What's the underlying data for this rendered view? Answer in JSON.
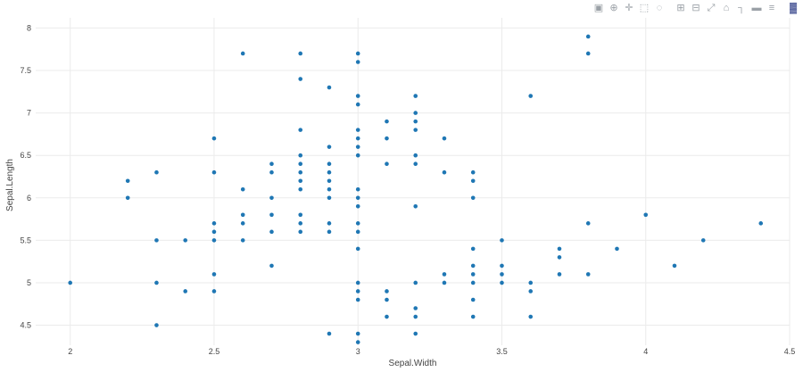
{
  "modebar": {
    "buttons": [
      {
        "icon": "camera-icon",
        "glyph": "▣"
      },
      {
        "icon": "zoom-icon",
        "glyph": "⊕"
      },
      {
        "icon": "pan-icon",
        "glyph": "✛"
      },
      {
        "icon": "box-select-icon",
        "glyph": "⬚"
      },
      {
        "icon": "lasso-select-icon",
        "glyph": "◌"
      },
      {
        "icon": "zoom-in-icon",
        "glyph": "⊞"
      },
      {
        "icon": "zoom-out-icon",
        "glyph": "⊟"
      },
      {
        "icon": "autoscale-icon",
        "glyph": "⤢"
      },
      {
        "icon": "reset-axes-icon",
        "glyph": "⌂"
      },
      {
        "icon": "spike-lines-icon",
        "glyph": "┐"
      },
      {
        "icon": "hover-closest-icon",
        "glyph": "▬"
      },
      {
        "icon": "hover-compare-icon",
        "glyph": "≡"
      },
      {
        "icon": "plotly-logo-icon",
        "glyph": "▓"
      }
    ]
  },
  "chart_data": {
    "type": "scatter",
    "title": "",
    "xlabel": "Sepal.Width",
    "ylabel": "Sepal.Length",
    "xlim": [
      1.88,
      4.5
    ],
    "ylim": [
      4.18,
      8.12
    ],
    "xticks": [
      "2",
      "2.5",
      "3",
      "3.5",
      "4",
      "4.5"
    ],
    "xtick_values": [
      2,
      2.5,
      3,
      3.5,
      4,
      4.5
    ],
    "yticks": [
      "4.5",
      "5",
      "5.5",
      "6",
      "6.5",
      "7",
      "7.5",
      "8"
    ],
    "ytick_values": [
      4.5,
      5,
      5.5,
      6,
      6.5,
      7,
      7.5,
      8
    ],
    "grid": true,
    "marker_color": "#1f77b4",
    "points": [
      [
        2.0,
        5.0
      ],
      [
        2.2,
        6.2
      ],
      [
        2.2,
        6.0
      ],
      [
        2.3,
        6.3
      ],
      [
        2.3,
        5.5
      ],
      [
        2.3,
        5.0
      ],
      [
        2.3,
        4.5
      ],
      [
        2.4,
        5.5
      ],
      [
        2.4,
        4.9
      ],
      [
        2.5,
        6.7
      ],
      [
        2.5,
        6.3
      ],
      [
        2.5,
        5.7
      ],
      [
        2.5,
        5.6
      ],
      [
        2.5,
        5.5
      ],
      [
        2.5,
        5.1
      ],
      [
        2.5,
        4.9
      ],
      [
        2.6,
        7.7
      ],
      [
        2.6,
        6.1
      ],
      [
        2.6,
        5.8
      ],
      [
        2.6,
        5.7
      ],
      [
        2.6,
        5.5
      ],
      [
        2.7,
        6.4
      ],
      [
        2.7,
        6.3
      ],
      [
        2.7,
        6.0
      ],
      [
        2.7,
        5.8
      ],
      [
        2.7,
        5.6
      ],
      [
        2.7,
        5.2
      ],
      [
        2.8,
        7.7
      ],
      [
        2.8,
        7.4
      ],
      [
        2.8,
        6.8
      ],
      [
        2.8,
        6.5
      ],
      [
        2.8,
        6.4
      ],
      [
        2.8,
        6.3
      ],
      [
        2.8,
        6.2
      ],
      [
        2.8,
        6.1
      ],
      [
        2.8,
        5.8
      ],
      [
        2.8,
        5.7
      ],
      [
        2.8,
        5.6
      ],
      [
        2.9,
        7.3
      ],
      [
        2.9,
        6.6
      ],
      [
        2.9,
        6.4
      ],
      [
        2.9,
        6.3
      ],
      [
        2.9,
        6.2
      ],
      [
        2.9,
        6.1
      ],
      [
        2.9,
        6.0
      ],
      [
        2.9,
        5.7
      ],
      [
        2.9,
        5.6
      ],
      [
        2.9,
        4.4
      ],
      [
        3.0,
        7.7
      ],
      [
        3.0,
        7.6
      ],
      [
        3.0,
        7.2
      ],
      [
        3.0,
        7.1
      ],
      [
        3.0,
        6.8
      ],
      [
        3.0,
        6.7
      ],
      [
        3.0,
        6.6
      ],
      [
        3.0,
        6.5
      ],
      [
        3.0,
        6.1
      ],
      [
        3.0,
        6.0
      ],
      [
        3.0,
        5.9
      ],
      [
        3.0,
        5.7
      ],
      [
        3.0,
        5.6
      ],
      [
        3.0,
        5.4
      ],
      [
        3.0,
        5.0
      ],
      [
        3.0,
        4.9
      ],
      [
        3.0,
        4.8
      ],
      [
        3.0,
        4.4
      ],
      [
        3.0,
        4.3
      ],
      [
        3.1,
        6.9
      ],
      [
        3.1,
        6.7
      ],
      [
        3.1,
        6.4
      ],
      [
        3.1,
        4.9
      ],
      [
        3.1,
        4.8
      ],
      [
        3.1,
        4.6
      ],
      [
        3.2,
        7.2
      ],
      [
        3.2,
        7.0
      ],
      [
        3.2,
        6.9
      ],
      [
        3.2,
        6.8
      ],
      [
        3.2,
        6.5
      ],
      [
        3.2,
        6.4
      ],
      [
        3.2,
        5.9
      ],
      [
        3.2,
        5.0
      ],
      [
        3.2,
        4.7
      ],
      [
        3.2,
        4.6
      ],
      [
        3.2,
        4.4
      ],
      [
        3.3,
        6.7
      ],
      [
        3.3,
        6.3
      ],
      [
        3.3,
        5.1
      ],
      [
        3.3,
        5.0
      ],
      [
        3.4,
        6.3
      ],
      [
        3.4,
        6.2
      ],
      [
        3.4,
        6.0
      ],
      [
        3.4,
        5.4
      ],
      [
        3.4,
        5.2
      ],
      [
        3.4,
        5.1
      ],
      [
        3.4,
        5.0
      ],
      [
        3.4,
        4.8
      ],
      [
        3.4,
        4.6
      ],
      [
        3.5,
        5.5
      ],
      [
        3.5,
        5.2
      ],
      [
        3.5,
        5.1
      ],
      [
        3.5,
        5.0
      ],
      [
        3.6,
        7.2
      ],
      [
        3.6,
        5.0
      ],
      [
        3.6,
        4.9
      ],
      [
        3.6,
        4.6
      ],
      [
        3.7,
        5.4
      ],
      [
        3.7,
        5.3
      ],
      [
        3.7,
        5.1
      ],
      [
        3.8,
        7.9
      ],
      [
        3.8,
        7.7
      ],
      [
        3.8,
        5.7
      ],
      [
        3.8,
        5.1
      ],
      [
        3.9,
        5.4
      ],
      [
        4.0,
        5.8
      ],
      [
        4.1,
        5.2
      ],
      [
        4.2,
        5.5
      ],
      [
        4.4,
        5.7
      ]
    ]
  }
}
